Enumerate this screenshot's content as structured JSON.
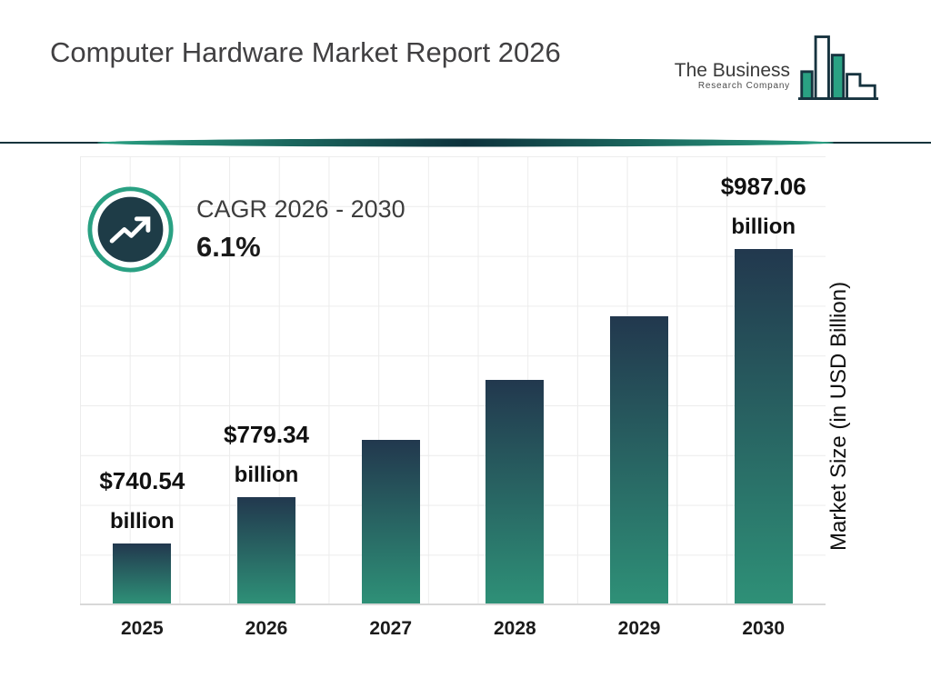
{
  "header": {
    "title": "Computer Hardware Market Report 2026",
    "logo": {
      "line1": "The Business",
      "line2": "Research Company",
      "icon": "bar-chart-logo-icon"
    }
  },
  "cagr": {
    "icon": "growth-trend-arrow-icon",
    "label": "CAGR 2026 - 2030",
    "value": "6.1%"
  },
  "chart_data": {
    "type": "bar",
    "title": "Computer Hardware Market Report 2026",
    "categories": [
      "2025",
      "2026",
      "2027",
      "2028",
      "2029",
      "2030"
    ],
    "values": [
      740.54,
      779.34,
      826.88,
      877.32,
      930.84,
      987.06
    ],
    "estimated": [
      false,
      false,
      true,
      true,
      true,
      false
    ],
    "data_labels": [
      {
        "value": "$740.54",
        "unit": "billion"
      },
      {
        "value": "$779.34",
        "unit": "billion"
      },
      null,
      null,
      null,
      {
        "value": "$987.06",
        "unit": "billion"
      }
    ],
    "xlabel": "",
    "ylabel": "Market Size (in USD Billion)",
    "ylim": [
      690,
      1050
    ],
    "grid": true,
    "legend": "none",
    "cagr_note": "CAGR 2026 - 2030: 6.1%",
    "bar_gradient_top": "#22384e",
    "bar_gradient_bottom": "#2e9077"
  },
  "colors": {
    "accent_teal": "#2aa183",
    "dark_navy": "#16333f",
    "badge_fill": "#1e3c47",
    "title_text": "#414042",
    "grid_line": "#ececec"
  }
}
